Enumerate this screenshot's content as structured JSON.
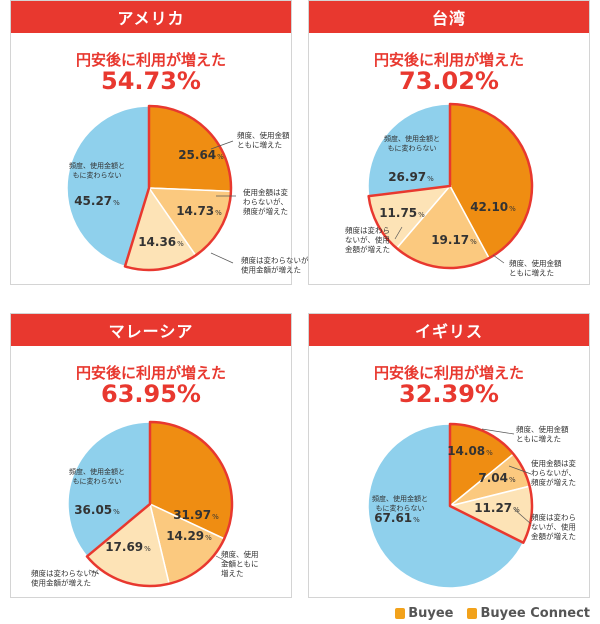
{
  "subtitle": "円安後に利用が増えた",
  "footer": {
    "brand1": "Buyee",
    "brand2": "Buyee Connect"
  },
  "colors": {
    "header": "#e8382f",
    "both_increased": "#ef8d12",
    "amount_increased": "#fbc97f",
    "frequency_increased": "#fde3b6",
    "unchanged": "#8fd0ec",
    "outline": "#e8382f"
  },
  "chart_data": [
    {
      "type": "pie",
      "title": "アメリカ",
      "subtitle": "円安後に利用が増えた",
      "highlight_total": "54.73%",
      "slices": [
        {
          "label": "頻度、使用金額ともに増えた",
          "value": 25.64,
          "display": "25.64",
          "unit": "%"
        },
        {
          "label": "使用金額は変わらないが、頻度が増えた",
          "value": 14.73,
          "display": "14.73",
          "unit": "%"
        },
        {
          "label": "頻度は変わらないが使用金額が増えた",
          "value": 14.36,
          "display": "14.36",
          "unit": "%"
        },
        {
          "label": "頻度、使用金額ともに変わらない",
          "value": 45.27,
          "display": "45.27",
          "unit": "%"
        }
      ]
    },
    {
      "type": "pie",
      "title": "台湾",
      "subtitle": "円安後に利用が増えた",
      "highlight_total": "73.02%",
      "slices": [
        {
          "label": "頻度、使用金額ともに増えた",
          "value": 42.1,
          "display": "42.10",
          "unit": "%"
        },
        {
          "label": "使用金額は変わらないが頻度が増えた",
          "value": 19.17,
          "display": "19.17",
          "unit": "%"
        },
        {
          "label": "頻度は変わらないが、使用金額が増えた",
          "value": 11.75,
          "display": "11.75",
          "unit": "%"
        },
        {
          "label": "頻度、使用金額ともに変わらない",
          "value": 26.97,
          "display": "26.97",
          "unit": "%"
        }
      ]
    },
    {
      "type": "pie",
      "title": "マレーシア",
      "subtitle": "円安後に利用が増えた",
      "highlight_total": "63.95%",
      "slices": [
        {
          "label": "頻度、使用金額ともに増えた",
          "value": 31.97,
          "display": "31.97",
          "unit": "%"
        },
        {
          "label": "使用金額は変わらないが、頻度が増えた",
          "value": 14.29,
          "display": "14.29",
          "unit": "%"
        },
        {
          "label": "頻度は変わらないが使用金額が増えた",
          "value": 17.69,
          "display": "17.69",
          "unit": "%"
        },
        {
          "label": "頻度、使用金額ともに変わらない",
          "value": 36.05,
          "display": "36.05",
          "unit": "%"
        }
      ]
    },
    {
      "type": "pie",
      "title": "イギリス",
      "subtitle": "円安後に利用が増えた",
      "highlight_total": "32.39%",
      "slices": [
        {
          "label": "頻度、使用金額ともに増えた",
          "value": 14.08,
          "display": "14.08",
          "unit": "%"
        },
        {
          "label": "使用金額は変わらないが、頻度が増えた",
          "value": 7.04,
          "display": "7.04",
          "unit": "%"
        },
        {
          "label": "頻度は変わらないが、使用金額が増えた",
          "value": 11.27,
          "display": "11.27",
          "unit": "%"
        },
        {
          "label": "頻度、使用金額ともに変わらない",
          "value": 67.61,
          "display": "67.61",
          "unit": "%"
        }
      ]
    }
  ]
}
